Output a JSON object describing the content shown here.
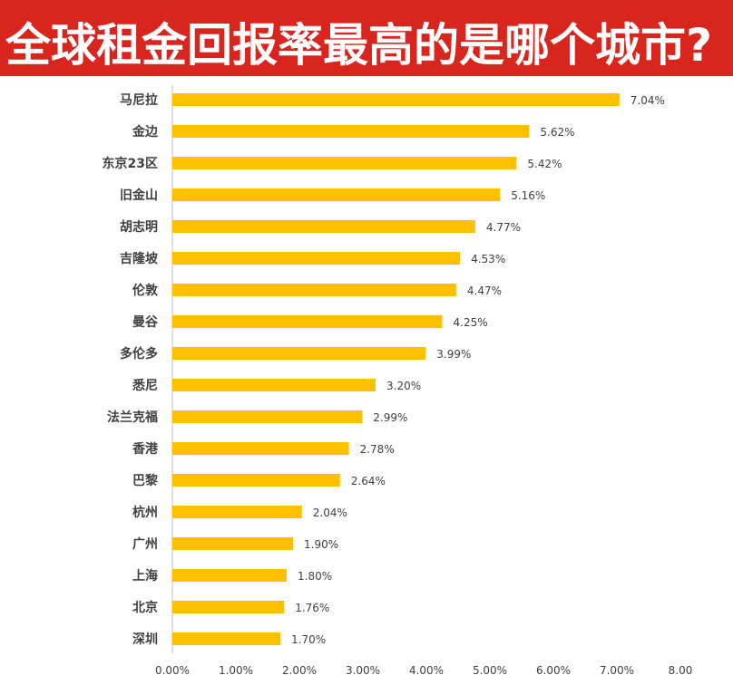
{
  "title": "全球租金回报率最高的是哪个城市?",
  "colors": {
    "title_bg": "#d8251d",
    "bar": "#ffc000",
    "axis": "#bfbfbf",
    "text": "#404040"
  },
  "chart_data": {
    "type": "bar",
    "orientation": "horizontal",
    "title": "全球租金回报率最高的是哪个城市?",
    "categories": [
      "马尼拉",
      "金边",
      "东京23区",
      "旧金山",
      "胡志明",
      "吉隆坡",
      "伦敦",
      "曼谷",
      "多伦多",
      "悉尼",
      "法兰克福",
      "香港",
      "巴黎",
      "杭州",
      "广州",
      "上海",
      "北京",
      "深圳"
    ],
    "values": [
      7.04,
      5.62,
      5.42,
      5.16,
      4.77,
      4.53,
      4.47,
      4.25,
      3.99,
      3.2,
      2.99,
      2.78,
      2.64,
      2.04,
      1.9,
      1.8,
      1.76,
      1.7
    ],
    "value_labels": [
      "7.04%",
      "5.62%",
      "5.42%",
      "5.16%",
      "4.77%",
      "4.53%",
      "4.47%",
      "4.25%",
      "3.99%",
      "3.20%",
      "2.99%",
      "2.78%",
      "2.64%",
      "2.04%",
      "1.90%",
      "1.80%",
      "1.76%",
      "1.70%"
    ],
    "x_ticks": [
      0,
      1,
      2,
      3,
      4,
      5,
      6,
      7,
      8
    ],
    "x_tick_labels": [
      "0.00%",
      "1.00%",
      "2.00%",
      "3.00%",
      "4.00%",
      "5.00%",
      "6.00%",
      "7.00%",
      "8.00"
    ],
    "xlim": [
      0,
      8
    ],
    "grid": false,
    "legend": "none",
    "xlabel": "",
    "ylabel": ""
  }
}
